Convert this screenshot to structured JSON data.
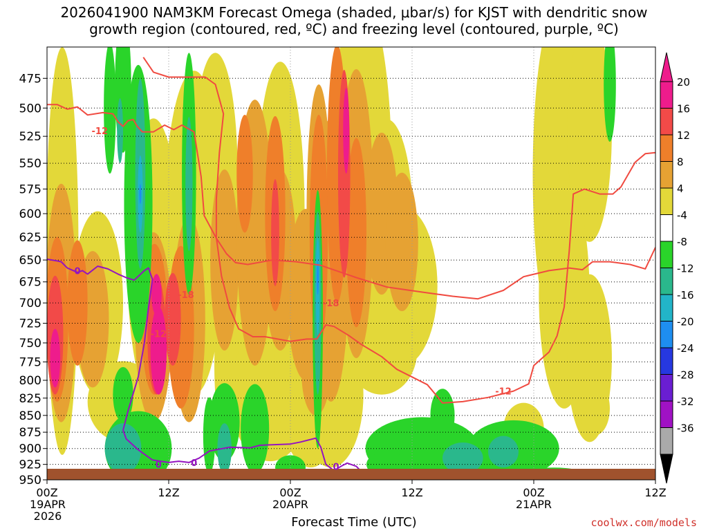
{
  "header": {
    "title_line1": "2026041900 NAM3KM Forecast Omega (shaded, μbar/s) for KJST with dendritic snow",
    "title_line2": "growth region (contoured, red, ºC) and freezing level (contoured, purple, ºC)"
  },
  "footer": {
    "credit": "coolwx.com/models"
  },
  "chart_data": {
    "type": "heatmap",
    "xlabel": "Forecast Time (UTC)",
    "ylabel": "",
    "x_ticks": [
      {
        "hour": 0,
        "lines": [
          "00Z",
          "19APR",
          "2026"
        ]
      },
      {
        "hour": 12,
        "lines": [
          "12Z"
        ]
      },
      {
        "hour": 24,
        "lines": [
          "00Z",
          "20APR"
        ]
      },
      {
        "hour": 36,
        "lines": [
          "12Z"
        ]
      },
      {
        "hour": 48,
        "lines": [
          "00Z",
          "21APR"
        ]
      },
      {
        "hour": 60,
        "lines": [
          "12Z"
        ]
      }
    ],
    "xlim_hours": [
      0,
      60
    ],
    "y_ticks_mb": [
      475,
      500,
      525,
      550,
      575,
      600,
      625,
      650,
      675,
      700,
      725,
      750,
      775,
      800,
      825,
      850,
      875,
      900,
      925,
      950
    ],
    "ylim_mb": [
      450,
      950
    ],
    "grid": true,
    "colorbar": {
      "tick_labels": [
        20,
        16,
        12,
        8,
        4,
        -4,
        -8,
        -12,
        -16,
        -20,
        -24,
        -28,
        -32,
        -36
      ],
      "bins": [
        {
          "from": 20,
          "to": 24,
          "color": "#ee1c8c"
        },
        {
          "from": 16,
          "to": 20,
          "color": "#f24a48"
        },
        {
          "from": 12,
          "to": 16,
          "color": "#ef7f2a"
        },
        {
          "from": 8,
          "to": 12,
          "color": "#e6a233"
        },
        {
          "from": 4,
          "to": 8,
          "color": "#e3d839"
        },
        {
          "from": -4,
          "to": 4,
          "color": "#ffffff"
        },
        {
          "from": -8,
          "to": -4,
          "color": "#2ad42a"
        },
        {
          "from": -12,
          "to": -8,
          "color": "#2ab88c"
        },
        {
          "from": -16,
          "to": -12,
          "color": "#22b4c8"
        },
        {
          "from": -20,
          "to": -16,
          "color": "#1e8ef0"
        },
        {
          "from": -24,
          "to": -20,
          "color": "#2638e0"
        },
        {
          "from": -28,
          "to": -24,
          "color": "#6a1ed2"
        },
        {
          "from": -32,
          "to": -28,
          "color": "#a012c4"
        },
        {
          "from": -36,
          "to": -32,
          "color": "#aaaaaa"
        }
      ],
      "under_color": "#000000",
      "over_color": "#ee1c8c"
    },
    "contours": [
      {
        "label": "-12",
        "color": "#f04a40",
        "label_positions": [
          [
            5.2,
            520
          ],
          [
            11.0,
            738
          ],
          [
            45.0,
            815
          ]
        ]
      },
      {
        "label": "-18",
        "color": "#f04a40",
        "label_positions": [
          [
            13.7,
            690
          ],
          [
            28.0,
            700
          ]
        ]
      },
      {
        "label": "0",
        "color": "#9414c0",
        "label_positions": [
          [
            3.0,
            662
          ],
          [
            11.0,
            925
          ],
          [
            14.5,
            922
          ],
          [
            28.5,
            928
          ]
        ]
      }
    ],
    "terrain_color": "#a0522d",
    "series": [
      {
        "values": [
          {
            "hour": 0.0,
            "mb": 649
          },
          {
            "hour": 1.0,
            "mb": 651
          },
          {
            "hour": 1.4,
            "mb": 652
          },
          {
            "hour": 2.0,
            "mb": 659
          },
          {
            "hour": 3.0,
            "mb": 664
          },
          {
            "hour": 3.5,
            "mb": 662
          },
          {
            "hour": 4.0,
            "mb": 666
          },
          {
            "hour": 5.0,
            "mb": 657
          },
          {
            "hour": 6.0,
            "mb": 660
          },
          {
            "hour": 7.0,
            "mb": 666
          },
          {
            "hour": 7.8,
            "mb": 670
          },
          {
            "hour": 8.6,
            "mb": 673
          },
          {
            "hour": 9.6,
            "mb": 662
          },
          {
            "hour": 10.0,
            "mb": 659
          },
          {
            "hour": 10.4,
            "mb": 672
          },
          {
            "hour": 10.0,
            "mb": 706
          },
          {
            "hour": 9.6,
            "mb": 750
          },
          {
            "hour": 9.0,
            "mb": 795
          },
          {
            "hour": 8.0,
            "mb": 843
          },
          {
            "hour": 7.5,
            "mb": 872
          },
          {
            "hour": 7.8,
            "mb": 885
          },
          {
            "hour": 9.0,
            "mb": 902
          },
          {
            "hour": 10.4,
            "mb": 918
          },
          {
            "hour": 12.0,
            "mb": 922
          },
          {
            "hour": 13.0,
            "mb": 920
          },
          {
            "hour": 14.0,
            "mb": 922
          },
          {
            "hour": 15.0,
            "mb": 915
          },
          {
            "hour": 16.0,
            "mb": 904
          },
          {
            "hour": 18.0,
            "mb": 898
          },
          {
            "hour": 20.0,
            "mb": 899
          },
          {
            "hour": 21.0,
            "mb": 895
          },
          {
            "hour": 24.0,
            "mb": 893
          },
          {
            "hour": 25.0,
            "mb": 890
          },
          {
            "hour": 26.5,
            "mb": 884
          },
          {
            "hour": 27.0,
            "mb": 898
          },
          {
            "hour": 27.5,
            "mb": 925
          },
          {
            "hour": 28.3,
            "mb": 935
          },
          {
            "hour": 29.0,
            "mb": 928
          },
          {
            "hour": 29.6,
            "mb": 923
          },
          {
            "hour": 30.5,
            "mb": 928
          },
          {
            "hour": 31.2,
            "mb": 940
          }
        ]
      },
      {
        "values": [
          {
            "hour": 44.0,
            "mb": 944
          },
          {
            "hour": 45.0,
            "mb": 943
          },
          {
            "hour": 46.0,
            "mb": 944
          },
          {
            "hour": 46.6,
            "mb": 946
          }
        ]
      },
      {
        "values": [
          {
            "hour": 0.0,
            "mb": 497
          },
          {
            "hour": 1.0,
            "mb": 497
          },
          {
            "hour": 2.0,
            "mb": 501
          },
          {
            "hour": 3.0,
            "mb": 499
          },
          {
            "hour": 4.0,
            "mb": 506
          },
          {
            "hour": 5.5,
            "mb": 504
          },
          {
            "hour": 6.5,
            "mb": 505
          },
          {
            "hour": 7.0,
            "mb": 512
          },
          {
            "hour": 7.5,
            "mb": 516
          },
          {
            "hour": 8.0,
            "mb": 511
          },
          {
            "hour": 8.5,
            "mb": 510
          },
          {
            "hour": 8.9,
            "mb": 516
          },
          {
            "hour": 9.4,
            "mb": 521
          },
          {
            "hour": 10.5,
            "mb": 521
          },
          {
            "hour": 11.6,
            "mb": 515
          },
          {
            "hour": 12.5,
            "mb": 519
          },
          {
            "hour": 13.3,
            "mb": 515
          },
          {
            "hour": 14.5,
            "mb": 521
          },
          {
            "hour": 15.2,
            "mb": 563
          },
          {
            "hour": 15.5,
            "mb": 602
          },
          {
            "hour": 16.7,
            "mb": 626
          },
          {
            "hour": 17.7,
            "mb": 643
          },
          {
            "hour": 18.6,
            "mb": 653
          },
          {
            "hour": 19.8,
            "mb": 655
          },
          {
            "hour": 22.2,
            "mb": 650
          },
          {
            "hour": 24.6,
            "mb": 652
          },
          {
            "hour": 27.0,
            "mb": 656
          },
          {
            "hour": 30.5,
            "mb": 670
          },
          {
            "hour": 33.5,
            "mb": 681
          },
          {
            "hour": 37.0,
            "mb": 687
          },
          {
            "hour": 40.0,
            "mb": 692
          },
          {
            "hour": 42.5,
            "mb": 695
          },
          {
            "hour": 45.0,
            "mb": 685
          },
          {
            "hour": 47.0,
            "mb": 669
          },
          {
            "hour": 49.5,
            "mb": 662
          },
          {
            "hour": 51.5,
            "mb": 659
          },
          {
            "hour": 52.8,
            "mb": 661
          },
          {
            "hour": 53.8,
            "mb": 652
          },
          {
            "hour": 55.5,
            "mb": 652
          },
          {
            "hour": 57.5,
            "mb": 655
          },
          {
            "hour": 59.0,
            "mb": 660
          },
          {
            "hour": 60.0,
            "mb": 636
          }
        ]
      },
      {
        "values": [
          {
            "hour": 9.5,
            "mb": 458
          },
          {
            "hour": 10.5,
            "mb": 470
          },
          {
            "hour": 12.0,
            "mb": 474
          },
          {
            "hour": 15.6,
            "mb": 474
          },
          {
            "hour": 16.6,
            "mb": 480
          },
          {
            "hour": 17.4,
            "mb": 505
          },
          {
            "hour": 17.0,
            "mb": 540
          },
          {
            "hour": 16.7,
            "mb": 585
          },
          {
            "hour": 16.7,
            "mb": 625
          },
          {
            "hour": 17.2,
            "mb": 668
          },
          {
            "hour": 18.0,
            "mb": 706
          },
          {
            "hour": 18.9,
            "mb": 732
          },
          {
            "hour": 20.3,
            "mb": 742
          },
          {
            "hour": 21.5,
            "mb": 742
          },
          {
            "hour": 24.0,
            "mb": 748
          },
          {
            "hour": 25.6,
            "mb": 745
          },
          {
            "hour": 26.6,
            "mb": 745
          },
          {
            "hour": 27.5,
            "mb": 727
          },
          {
            "hour": 28.3,
            "mb": 729
          },
          {
            "hour": 29.7,
            "mb": 740
          },
          {
            "hour": 31.0,
            "mb": 752
          },
          {
            "hour": 33.0,
            "mb": 768
          },
          {
            "hour": 34.5,
            "mb": 785
          },
          {
            "hour": 37.5,
            "mb": 806
          },
          {
            "hour": 38.5,
            "mb": 823
          },
          {
            "hour": 39.0,
            "mb": 832
          },
          {
            "hour": 41.0,
            "mb": 830
          },
          {
            "hour": 43.5,
            "mb": 824
          },
          {
            "hour": 46.0,
            "mb": 815
          },
          {
            "hour": 47.5,
            "mb": 805
          },
          {
            "hour": 48.0,
            "mb": 780
          },
          {
            "hour": 49.5,
            "mb": 762
          },
          {
            "hour": 50.3,
            "mb": 741
          },
          {
            "hour": 51.0,
            "mb": 705
          },
          {
            "hour": 51.5,
            "mb": 640
          },
          {
            "hour": 51.9,
            "mb": 580
          },
          {
            "hour": 53.0,
            "mb": 575
          },
          {
            "hour": 54.5,
            "mb": 580
          },
          {
            "hour": 55.8,
            "mb": 580
          },
          {
            "hour": 56.6,
            "mb": 573
          },
          {
            "hour": 58.0,
            "mb": 549
          },
          {
            "hour": 59.0,
            "mb": 541
          },
          {
            "hour": 60.0,
            "mb": 540
          }
        ]
      }
    ]
  }
}
